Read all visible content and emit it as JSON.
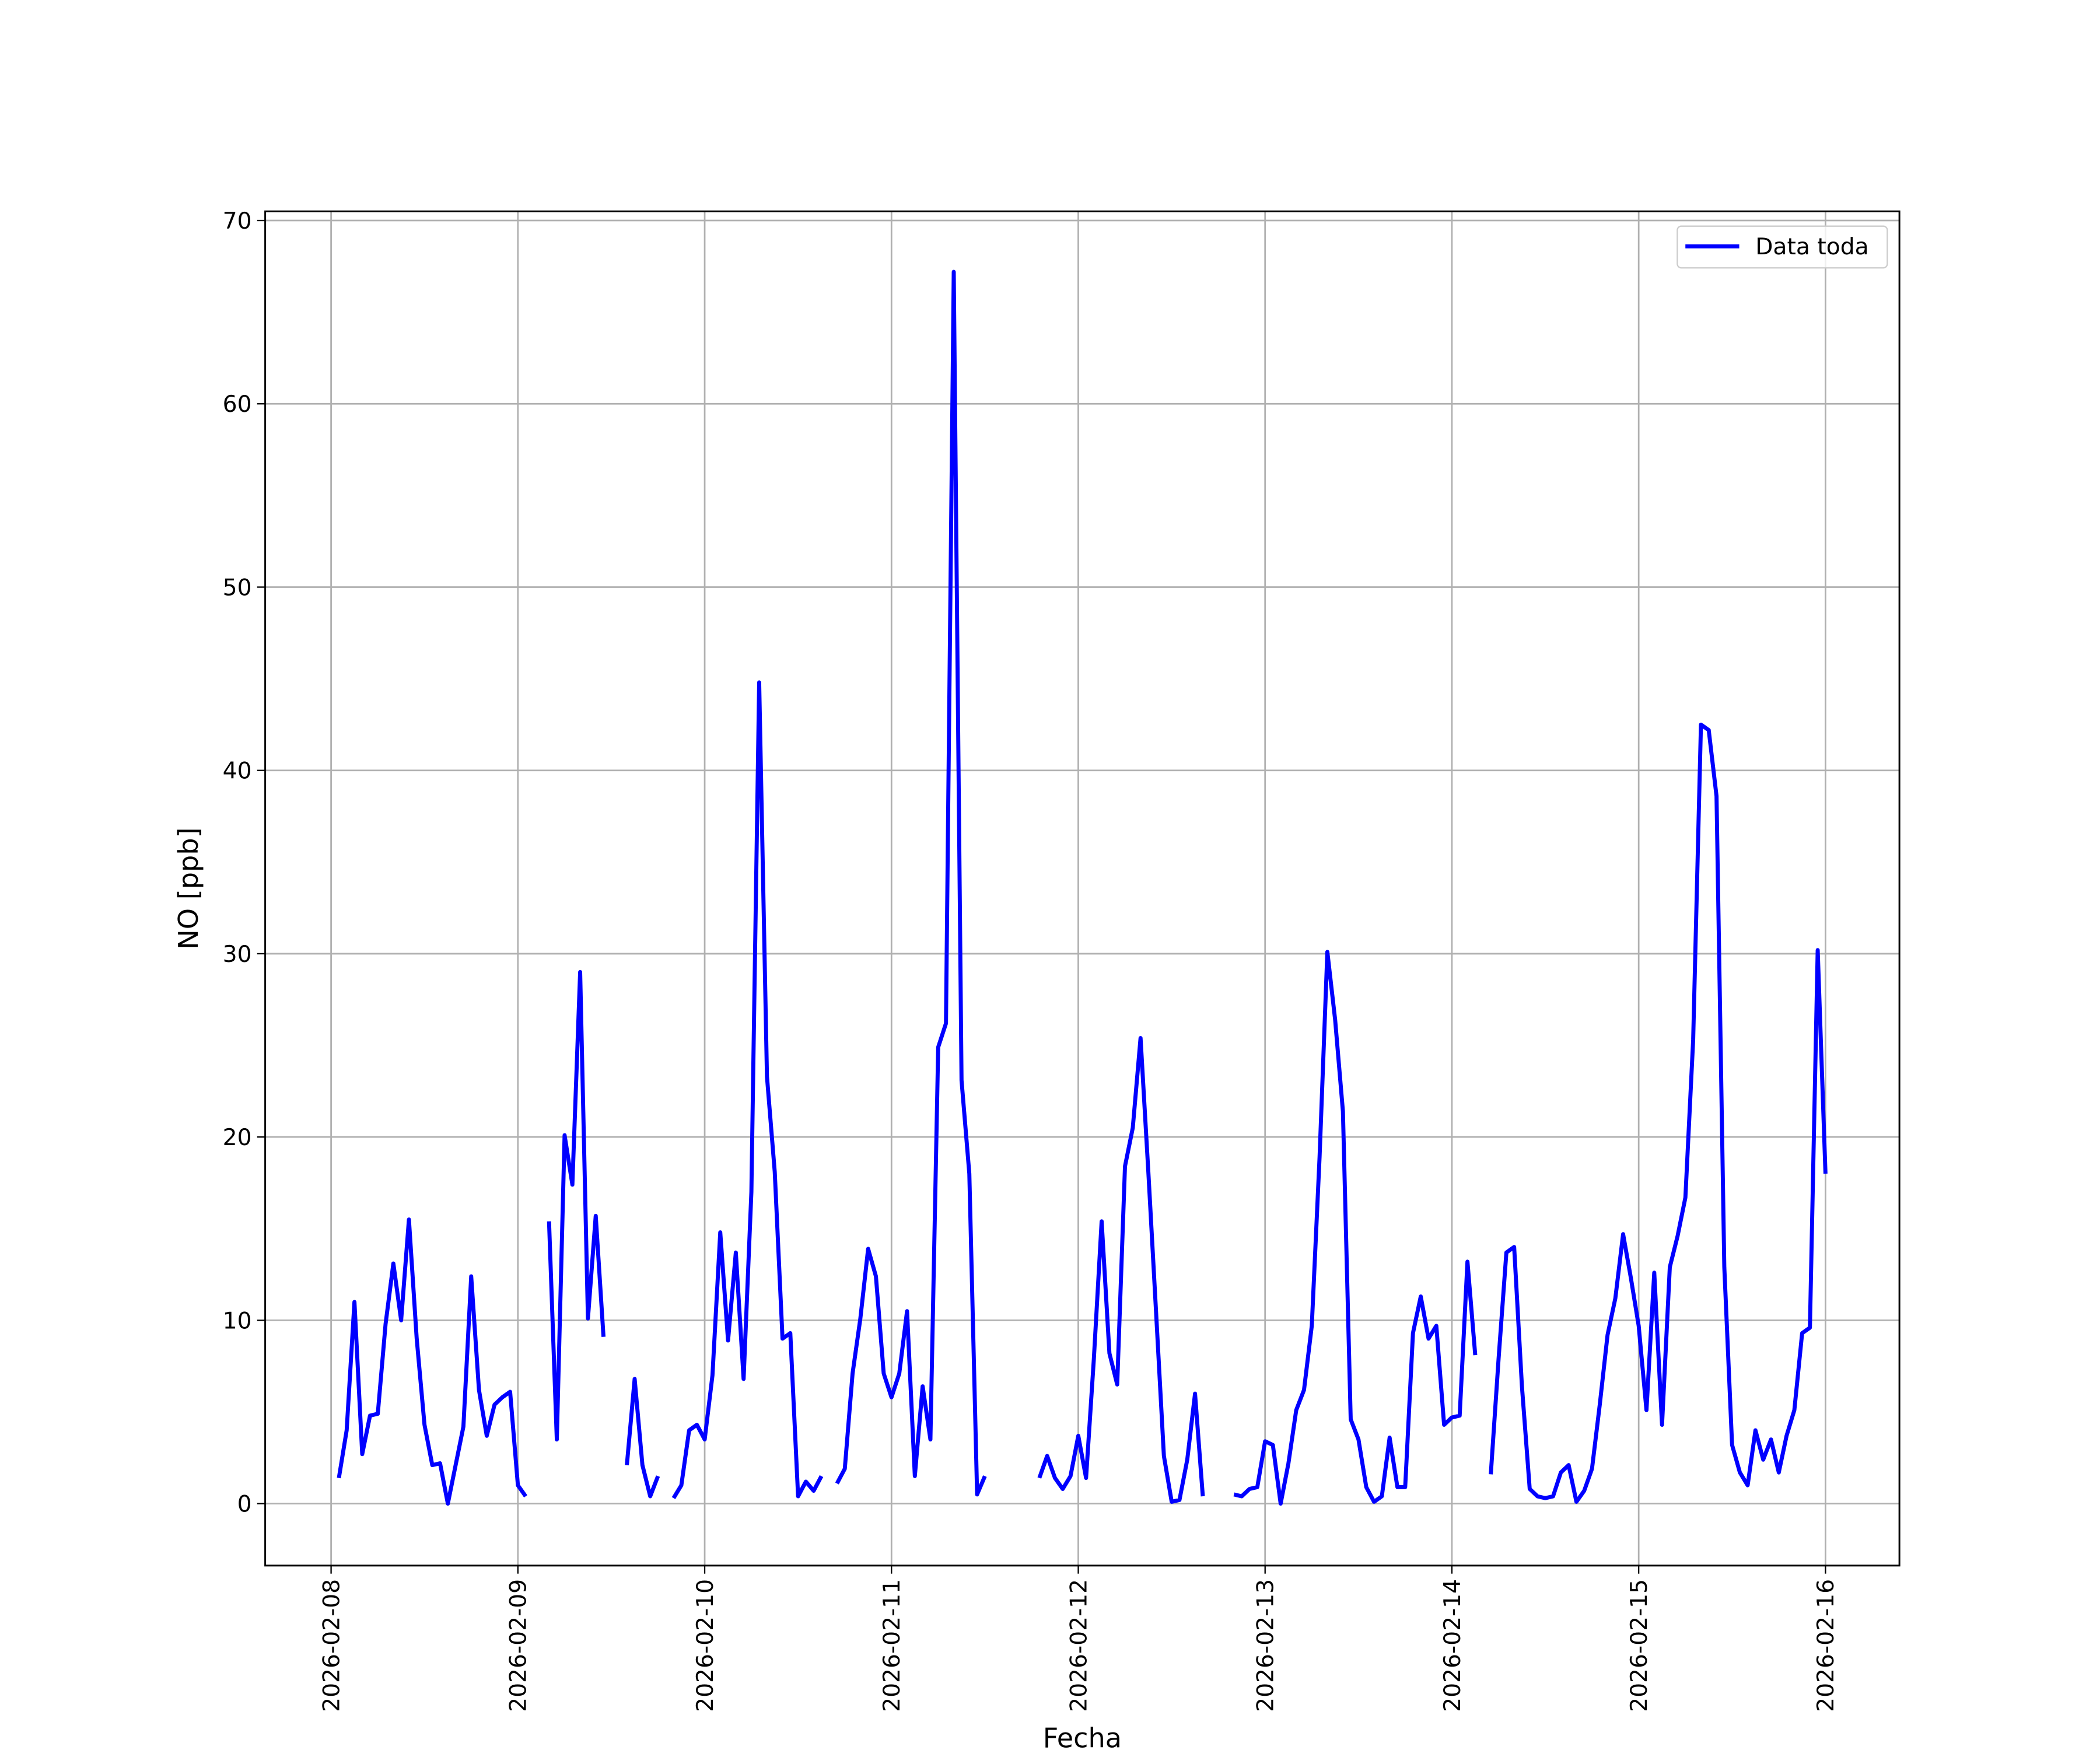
{
  "chart_data": {
    "type": "line",
    "xlabel": "Fecha",
    "ylabel": "NO [ppb]",
    "x": [
      "2026-02-08T01:00",
      "2026-02-08T02:00",
      "2026-02-08T03:00",
      "2026-02-08T04:00",
      "2026-02-08T05:00",
      "2026-02-08T06:00",
      "2026-02-08T07:00",
      "2026-02-08T08:00",
      "2026-02-08T09:00",
      "2026-02-08T10:00",
      "2026-02-08T11:00",
      "2026-02-08T12:00",
      "2026-02-08T13:00",
      "2026-02-08T14:00",
      "2026-02-08T15:00",
      "2026-02-08T16:00",
      "2026-02-08T17:00",
      "2026-02-08T18:00",
      "2026-02-08T19:00",
      "2026-02-08T20:00",
      "2026-02-08T21:00",
      "2026-02-08T22:00",
      "2026-02-08T23:00",
      "2026-02-09T00:00",
      "2026-02-09T01:00",
      "2026-02-09T02:00",
      "2026-02-09T03:00",
      "2026-02-09T04:00",
      "2026-02-09T05:00",
      "2026-02-09T06:00",
      "2026-02-09T07:00",
      "2026-02-09T08:00",
      "2026-02-09T09:00",
      "2026-02-09T10:00",
      "2026-02-09T11:00",
      "2026-02-09T12:00",
      "2026-02-09T13:00",
      "2026-02-09T14:00",
      "2026-02-09T15:00",
      "2026-02-09T16:00",
      "2026-02-09T17:00",
      "2026-02-09T18:00",
      "2026-02-09T19:00",
      "2026-02-09T20:00",
      "2026-02-09T21:00",
      "2026-02-09T22:00",
      "2026-02-09T23:00",
      "2026-02-10T00:00",
      "2026-02-10T01:00",
      "2026-02-10T02:00",
      "2026-02-10T03:00",
      "2026-02-10T04:00",
      "2026-02-10T05:00",
      "2026-02-10T06:00",
      "2026-02-10T07:00",
      "2026-02-10T08:00",
      "2026-02-10T09:00",
      "2026-02-10T10:00",
      "2026-02-10T11:00",
      "2026-02-10T12:00",
      "2026-02-10T13:00",
      "2026-02-10T14:00",
      "2026-02-10T15:00",
      "2026-02-10T16:00",
      "2026-02-10T17:00",
      "2026-02-10T18:00",
      "2026-02-10T19:00",
      "2026-02-10T20:00",
      "2026-02-10T21:00",
      "2026-02-10T22:00",
      "2026-02-10T23:00",
      "2026-02-11T00:00",
      "2026-02-11T01:00",
      "2026-02-11T02:00",
      "2026-02-11T03:00",
      "2026-02-11T04:00",
      "2026-02-11T05:00",
      "2026-02-11T06:00",
      "2026-02-11T07:00",
      "2026-02-11T08:00",
      "2026-02-11T09:00",
      "2026-02-11T10:00",
      "2026-02-11T11:00",
      "2026-02-11T12:00",
      "2026-02-11T13:00",
      "2026-02-11T14:00",
      "2026-02-11T15:00",
      "2026-02-11T16:00",
      "2026-02-11T17:00",
      "2026-02-11T18:00",
      "2026-02-11T19:00",
      "2026-02-11T20:00",
      "2026-02-11T21:00",
      "2026-02-11T22:00",
      "2026-02-11T23:00",
      "2026-02-12T00:00",
      "2026-02-12T01:00",
      "2026-02-12T02:00",
      "2026-02-12T03:00",
      "2026-02-12T04:00",
      "2026-02-12T05:00",
      "2026-02-12T06:00",
      "2026-02-12T07:00",
      "2026-02-12T08:00",
      "2026-02-12T09:00",
      "2026-02-12T10:00",
      "2026-02-12T11:00",
      "2026-02-12T12:00",
      "2026-02-12T13:00",
      "2026-02-12T14:00",
      "2026-02-12T15:00",
      "2026-02-12T16:00",
      "2026-02-12T17:00",
      "2026-02-12T18:00",
      "2026-02-12T19:00",
      "2026-02-12T20:00",
      "2026-02-12T21:00",
      "2026-02-12T22:00",
      "2026-02-12T23:00",
      "2026-02-13T00:00",
      "2026-02-13T01:00",
      "2026-02-13T02:00",
      "2026-02-13T03:00",
      "2026-02-13T04:00",
      "2026-02-13T05:00",
      "2026-02-13T06:00",
      "2026-02-13T07:00",
      "2026-02-13T08:00",
      "2026-02-13T09:00",
      "2026-02-13T10:00",
      "2026-02-13T11:00",
      "2026-02-13T12:00",
      "2026-02-13T13:00",
      "2026-02-13T14:00",
      "2026-02-13T15:00",
      "2026-02-13T16:00",
      "2026-02-13T17:00",
      "2026-02-13T18:00",
      "2026-02-13T19:00",
      "2026-02-13T20:00",
      "2026-02-13T21:00",
      "2026-02-13T22:00",
      "2026-02-13T23:00",
      "2026-02-14T00:00",
      "2026-02-14T01:00",
      "2026-02-14T02:00",
      "2026-02-14T03:00",
      "2026-02-14T04:00",
      "2026-02-14T05:00",
      "2026-02-14T06:00",
      "2026-02-14T07:00",
      "2026-02-14T08:00",
      "2026-02-14T09:00",
      "2026-02-14T10:00",
      "2026-02-14T11:00",
      "2026-02-14T12:00",
      "2026-02-14T13:00",
      "2026-02-14T14:00",
      "2026-02-14T15:00",
      "2026-02-14T16:00",
      "2026-02-14T17:00",
      "2026-02-14T18:00",
      "2026-02-14T19:00",
      "2026-02-14T20:00",
      "2026-02-14T21:00",
      "2026-02-14T22:00",
      "2026-02-14T23:00",
      "2026-02-15T00:00",
      "2026-02-15T01:00",
      "2026-02-15T02:00",
      "2026-02-15T03:00",
      "2026-02-15T04:00",
      "2026-02-15T05:00",
      "2026-02-15T06:00",
      "2026-02-15T07:00",
      "2026-02-15T08:00",
      "2026-02-15T09:00",
      "2026-02-15T10:00",
      "2026-02-15T11:00",
      "2026-02-15T12:00",
      "2026-02-15T13:00",
      "2026-02-15T14:00",
      "2026-02-15T15:00",
      "2026-02-15T16:00",
      "2026-02-15T17:00",
      "2026-02-15T18:00",
      "2026-02-15T19:00",
      "2026-02-15T20:00",
      "2026-02-15T21:00",
      "2026-02-15T22:00",
      "2026-02-15T23:00",
      "2026-02-16T00:00"
    ],
    "series": [
      {
        "name": "Data toda",
        "color": "#0000ff",
        "values": [
          1.4,
          4.0,
          11.0,
          2.7,
          4.8,
          4.9,
          9.8,
          13.1,
          10.0,
          15.5,
          9.0,
          4.3,
          2.1,
          2.2,
          0.0,
          2.1,
          4.2,
          12.4,
          6.2,
          3.7,
          5.4,
          5.8,
          6.1,
          1.0,
          0.4,
          null,
          null,
          15.4,
          3.5,
          20.1,
          17.4,
          29.0,
          10.1,
          15.7,
          9.1,
          null,
          null,
          2.1,
          6.8,
          2.1,
          0.4,
          1.5,
          null,
          0.3,
          1.0,
          4.0,
          4.3,
          3.5,
          7.0,
          14.8,
          8.9,
          13.7,
          6.8,
          17.0,
          44.8,
          23.3,
          18.1,
          9.0,
          9.3,
          0.4,
          1.2,
          0.7,
          1.5,
          null,
          1.1,
          1.9,
          7.1,
          10.1,
          13.9,
          12.4,
          7.1,
          5.8,
          7.1,
          10.5,
          1.5,
          6.4,
          3.5,
          24.9,
          26.2,
          67.2,
          23.1,
          18.0,
          0.5,
          1.5,
          null,
          null,
          null,
          null,
          null,
          null,
          1.4,
          2.6,
          1.4,
          0.8,
          1.5,
          3.7,
          1.4,
          7.9,
          15.4,
          8.2,
          6.5,
          18.4,
          20.5,
          25.4,
          18.1,
          10.4,
          2.6,
          0.1,
          0.2,
          2.4,
          6.0,
          0.4,
          null,
          null,
          null,
          0.5,
          0.4,
          0.8,
          0.9,
          3.4,
          3.2,
          0.0,
          2.2,
          5.1,
          6.2,
          9.7,
          18.9,
          30.1,
          26.4,
          21.4,
          4.6,
          3.5,
          0.9,
          0.1,
          0.4,
          3.6,
          0.9,
          0.9,
          9.3,
          11.3,
          9.0,
          9.7,
          4.3,
          4.7,
          4.8,
          13.2,
          8.1,
          null,
          1.6,
          7.9,
          13.7,
          14.0,
          6.4,
          0.8,
          0.4,
          0.3,
          0.4,
          1.7,
          2.1,
          0.1,
          0.7,
          1.9,
          5.4,
          9.2,
          11.2,
          14.7,
          12.3,
          9.7,
          5.1,
          12.6,
          4.3,
          12.9,
          14.6,
          16.7,
          25.3,
          42.5,
          42.2,
          38.6,
          12.9,
          3.2,
          1.7,
          1.0,
          4.0,
          2.4,
          3.5,
          1.7,
          3.7,
          5.1,
          9.3,
          9.6,
          30.2,
          18.0
        ]
      }
    ],
    "xlim": [
      "2026-02-07T15:32",
      "2026-02-16T09:30"
    ],
    "xticks": [
      "2026-02-08",
      "2026-02-09",
      "2026-02-10",
      "2026-02-11",
      "2026-02-12",
      "2026-02-13",
      "2026-02-14",
      "2026-02-15",
      "2026-02-16"
    ],
    "ylim": [
      -3.38,
      70.5
    ],
    "yticks": [
      0,
      10,
      20,
      30,
      40,
      50,
      60,
      70
    ],
    "grid": true,
    "legend": "upper right"
  }
}
